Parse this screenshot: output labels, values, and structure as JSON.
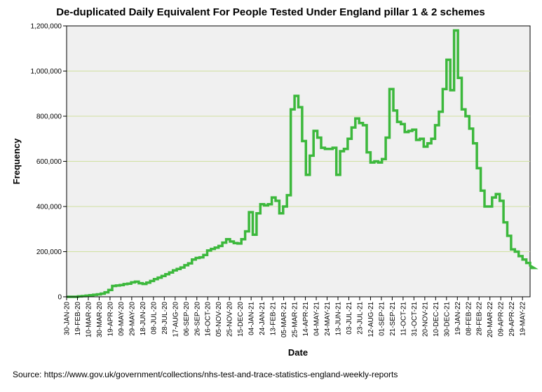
{
  "chart_data": {
    "type": "line",
    "title": "De-duplicated Daily Equivalent For People Tested Under England pillar 1 & 2 schemes",
    "xlabel": "Date",
    "ylabel": "Frequency",
    "ylim": [
      0,
      1200000
    ],
    "yticks": [
      0,
      200000,
      400000,
      600000,
      800000,
      1000000,
      1200000
    ],
    "ytick_labels": [
      "0",
      "200,000",
      "400,000",
      "600,000",
      "800,000",
      "1,000,000",
      "1,200,000"
    ],
    "xtick_labels": [
      "30-JAN-20",
      "19-FEB-20",
      "10-MAR-20",
      "30-MAR-20",
      "19-APR-20",
      "09-MAY-20",
      "29-MAY-20",
      "18-JUN-20",
      "08-JUL-20",
      "28-JUL-20",
      "17-AUG-20",
      "06-SEP-20",
      "26-SEP-20",
      "16-OCT-20",
      "05-NOV-20",
      "25-NOV-20",
      "15-DEC-20",
      "04-JAN-21",
      "24-JAN-21",
      "13-FEB-21",
      "05-MAR-21",
      "25-MAR-21",
      "14-APR-21",
      "04-MAY-21",
      "24-MAY-21",
      "13-JUN-21",
      "03-JUL-21",
      "23-JUL-21",
      "12-AUG-21",
      "01-SEP-21",
      "21-SEP-21",
      "11-OCT-21",
      "31-OCT-21",
      "20-NOV-21",
      "10-DEC-21",
      "30-DEC-21",
      "19-JAN-22",
      "08-FEB-22",
      "28-FEB-22",
      "20-MAR-22",
      "09-APR-22",
      "29-APR-22",
      "19-MAY-22"
    ],
    "x_tick_day_interval": 20,
    "x_start": "30-JAN-20",
    "x_end_day": 854,
    "grid": true,
    "series": [
      {
        "name": "Daily equivalent",
        "color": "#3cb83c",
        "step_days": 7,
        "values": [
          0,
          0,
          0,
          2000,
          3000,
          5000,
          7000,
          9000,
          11000,
          14000,
          20000,
          30000,
          48000,
          50000,
          52000,
          56000,
          58000,
          64000,
          67000,
          60000,
          57000,
          63000,
          70000,
          78000,
          85000,
          92000,
          100000,
          108000,
          117000,
          123000,
          130000,
          140000,
          148000,
          165000,
          172000,
          175000,
          185000,
          205000,
          212000,
          218000,
          225000,
          240000,
          255000,
          245000,
          238000,
          236000,
          255000,
          290000,
          375000,
          275000,
          370000,
          410000,
          405000,
          410000,
          440000,
          425000,
          370000,
          400000,
          450000,
          830000,
          890000,
          840000,
          690000,
          540000,
          625000,
          735000,
          705000,
          660000,
          655000,
          655000,
          660000,
          540000,
          645000,
          655000,
          700000,
          750000,
          790000,
          770000,
          760000,
          640000,
          595000,
          600000,
          595000,
          610000,
          705000,
          920000,
          825000,
          775000,
          765000,
          730000,
          735000,
          740000,
          695000,
          700000,
          665000,
          680000,
          700000,
          760000,
          820000,
          920000,
          1050000,
          915000,
          1180000,
          970000,
          830000,
          800000,
          745000,
          680000,
          570000,
          470000,
          400000,
          400000,
          440000,
          455000,
          425000,
          330000,
          270000,
          210000,
          200000,
          180000,
          165000,
          150000,
          138000,
          128000
        ]
      }
    ]
  },
  "source_text": "Source: https://www.gov.uk/government/collections/nhs-test-and-trace-statistics-england-weekly-reports",
  "colors": {
    "plot_background": "#f0f0f0",
    "gridline": "#cfe0a0",
    "line": "#3cb83c"
  }
}
